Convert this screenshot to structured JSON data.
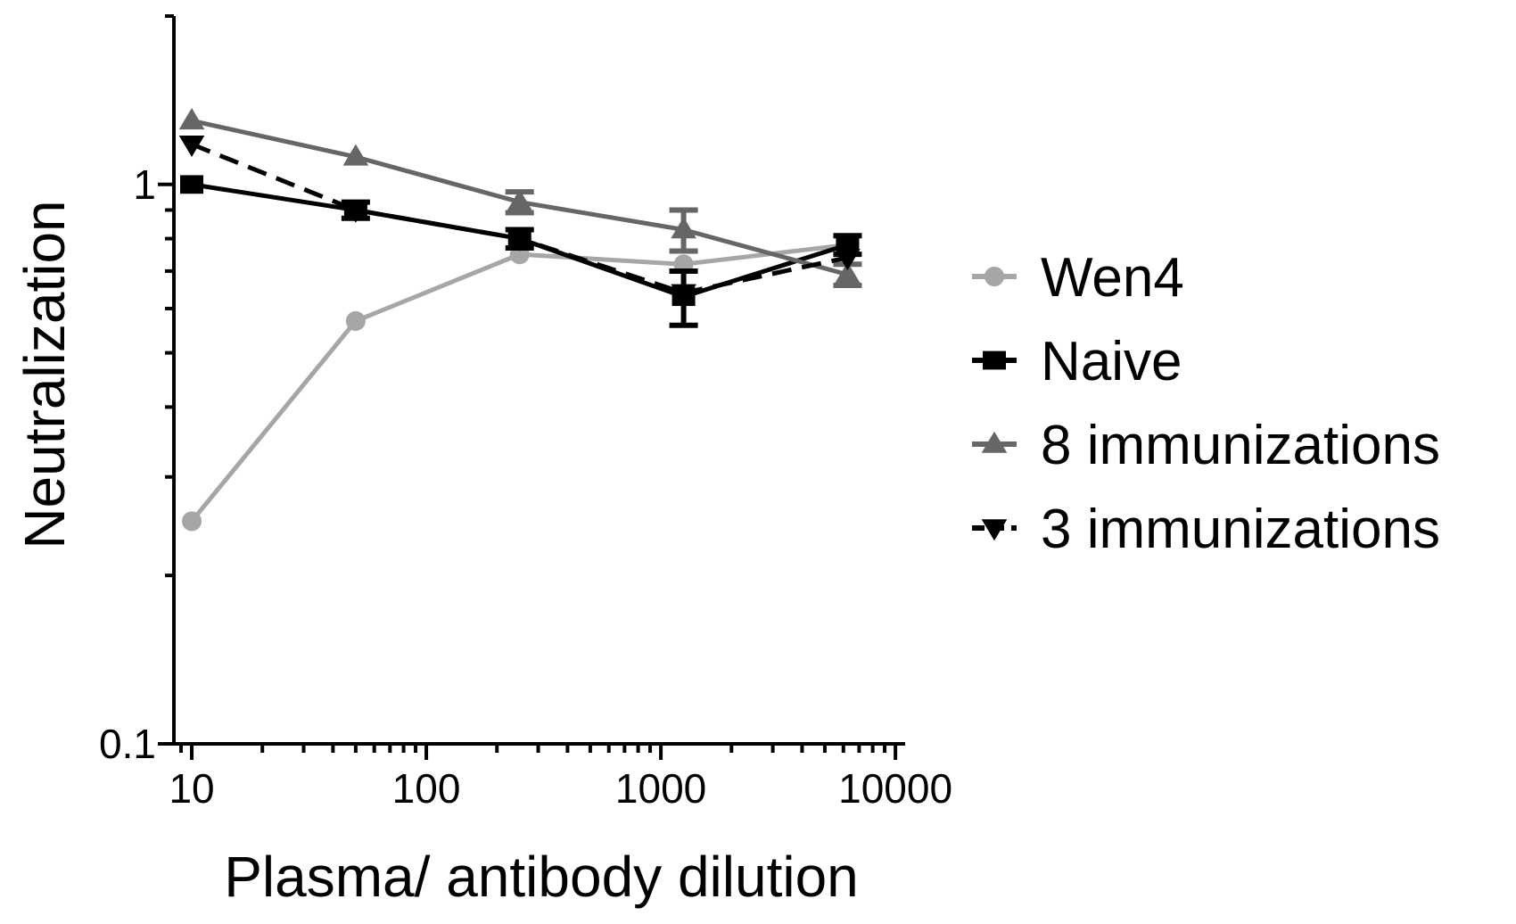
{
  "chart_data": {
    "type": "line",
    "xlabel": "Plasma/ antibody dilution",
    "ylabel": "Neutralization",
    "x_scale": "log",
    "y_scale": "log",
    "xlim": [
      9,
      11000
    ],
    "ylim": [
      0.1,
      2.0
    ],
    "x_ticks": [
      10,
      100,
      1000,
      10000
    ],
    "x_tick_labels": [
      "10",
      "100",
      "1000",
      "10000"
    ],
    "y_ticks": [
      0.1,
      1
    ],
    "y_tick_labels": [
      "0.1",
      "1"
    ],
    "grid": false,
    "legend_position": "right",
    "x": [
      10,
      50,
      250,
      1250,
      6250
    ],
    "series": [
      {
        "name": "Wen4",
        "color": "#a6a6a6",
        "marker": "circle",
        "dash": "solid",
        "values": [
          0.25,
          0.57,
          0.75,
          0.72,
          0.78
        ],
        "errors": [
          0,
          0,
          0,
          0,
          0
        ]
      },
      {
        "name": "Naive",
        "color": "#000000",
        "marker": "square",
        "dash": "solid",
        "values": [
          1.0,
          0.9,
          0.8,
          0.63,
          0.78
        ],
        "errors": [
          0,
          0.03,
          0.03,
          0.07,
          0.03
        ]
      },
      {
        "name": "8 immunizations",
        "color": "#666666",
        "marker": "triangle-up",
        "dash": "solid",
        "values": [
          1.3,
          1.12,
          0.93,
          0.83,
          0.69
        ],
        "errors": [
          0,
          0,
          0.04,
          0.07,
          0.03
        ]
      },
      {
        "name": "3 immunizations",
        "color": "#000000",
        "marker": "triangle-down",
        "dash": "dashed",
        "values": [
          1.18,
          0.9,
          0.8,
          0.64,
          0.74
        ],
        "errors": [
          0,
          0,
          0,
          0,
          0
        ]
      }
    ]
  }
}
